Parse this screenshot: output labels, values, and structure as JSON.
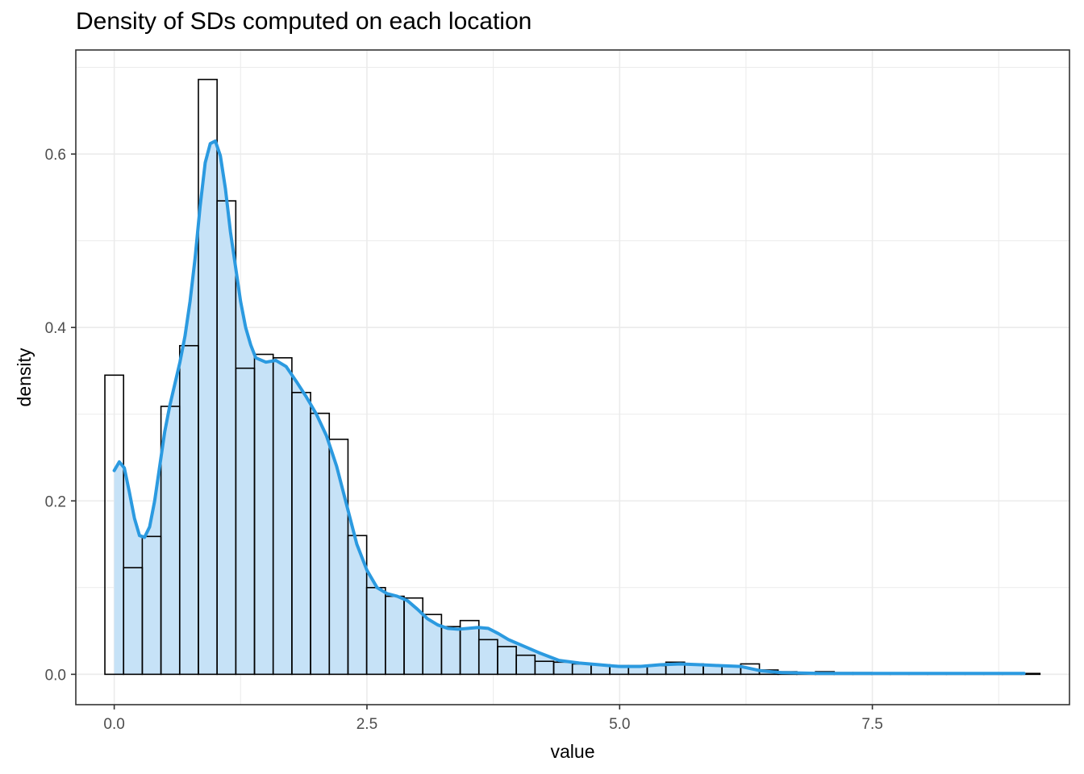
{
  "chart_data": {
    "type": "bar",
    "title": "Density of SDs computed on each location",
    "xlabel": "value",
    "ylabel": "density",
    "xlim": [
      -0.38,
      9.45
    ],
    "ylim": [
      -0.035,
      0.72
    ],
    "x_ticks": [
      0.0,
      2.5,
      5.0,
      7.5
    ],
    "x_tick_labels": [
      "0.0",
      "2.5",
      "5.0",
      "7.5"
    ],
    "y_ticks": [
      0.0,
      0.2,
      0.4,
      0.6
    ],
    "y_tick_labels": [
      "0.0",
      "0.2",
      "0.4",
      "0.6"
    ],
    "grid": true,
    "legend": "none",
    "series": [
      {
        "type": "histogram",
        "bin_width": 0.185,
        "bin_start": -0.0925,
        "values": [
          0.345,
          0.123,
          0.159,
          0.309,
          0.379,
          0.686,
          0.546,
          0.353,
          0.369,
          0.365,
          0.325,
          0.301,
          0.271,
          0.16,
          0.1,
          0.09,
          0.088,
          0.069,
          0.055,
          0.062,
          0.04,
          0.032,
          0.022,
          0.015,
          0.014,
          0.012,
          0.011,
          0.01,
          0.01,
          0.01,
          0.014,
          0.012,
          0.01,
          0.01,
          0.012,
          0.005,
          0.003,
          0.002,
          0.003,
          0.002,
          0.002,
          0.001,
          0.001,
          0.001,
          0.001,
          0.001,
          0.001,
          0.001,
          0.001,
          0.001
        ]
      },
      {
        "type": "density",
        "x": [
          0.0,
          0.05,
          0.1,
          0.15,
          0.2,
          0.25,
          0.3,
          0.35,
          0.4,
          0.45,
          0.5,
          0.55,
          0.6,
          0.65,
          0.7,
          0.75,
          0.8,
          0.85,
          0.9,
          0.95,
          1.0,
          1.05,
          1.1,
          1.15,
          1.2,
          1.25,
          1.3,
          1.35,
          1.4,
          1.5,
          1.6,
          1.7,
          1.8,
          1.9,
          2.0,
          2.1,
          2.2,
          2.3,
          2.4,
          2.5,
          2.6,
          2.7,
          2.8,
          2.9,
          3.0,
          3.1,
          3.2,
          3.3,
          3.4,
          3.5,
          3.6,
          3.7,
          3.8,
          3.9,
          4.0,
          4.2,
          4.4,
          4.6,
          4.8,
          5.0,
          5.2,
          5.4,
          5.6,
          5.8,
          6.0,
          6.2,
          6.4,
          6.6,
          7.0,
          7.5,
          8.0,
          8.5,
          9.0
        ],
        "y": [
          0.235,
          0.245,
          0.238,
          0.21,
          0.18,
          0.16,
          0.158,
          0.17,
          0.2,
          0.24,
          0.28,
          0.31,
          0.335,
          0.36,
          0.39,
          0.43,
          0.48,
          0.54,
          0.59,
          0.612,
          0.615,
          0.598,
          0.56,
          0.51,
          0.47,
          0.43,
          0.4,
          0.38,
          0.365,
          0.36,
          0.362,
          0.355,
          0.338,
          0.32,
          0.3,
          0.275,
          0.24,
          0.195,
          0.15,
          0.12,
          0.1,
          0.093,
          0.09,
          0.085,
          0.075,
          0.064,
          0.057,
          0.053,
          0.052,
          0.053,
          0.054,
          0.053,
          0.047,
          0.04,
          0.035,
          0.025,
          0.016,
          0.013,
          0.011,
          0.009,
          0.009,
          0.011,
          0.012,
          0.011,
          0.01,
          0.009,
          0.004,
          0.002,
          0.001,
          0.001,
          0.001,
          0.001,
          0.001
        ]
      }
    ],
    "colors": {
      "fill": "#c6e2f7",
      "density_line": "#2b9ae0",
      "bar_outline": "#000000",
      "grid": "#ebebeb",
      "panel_border": "#333333"
    }
  }
}
